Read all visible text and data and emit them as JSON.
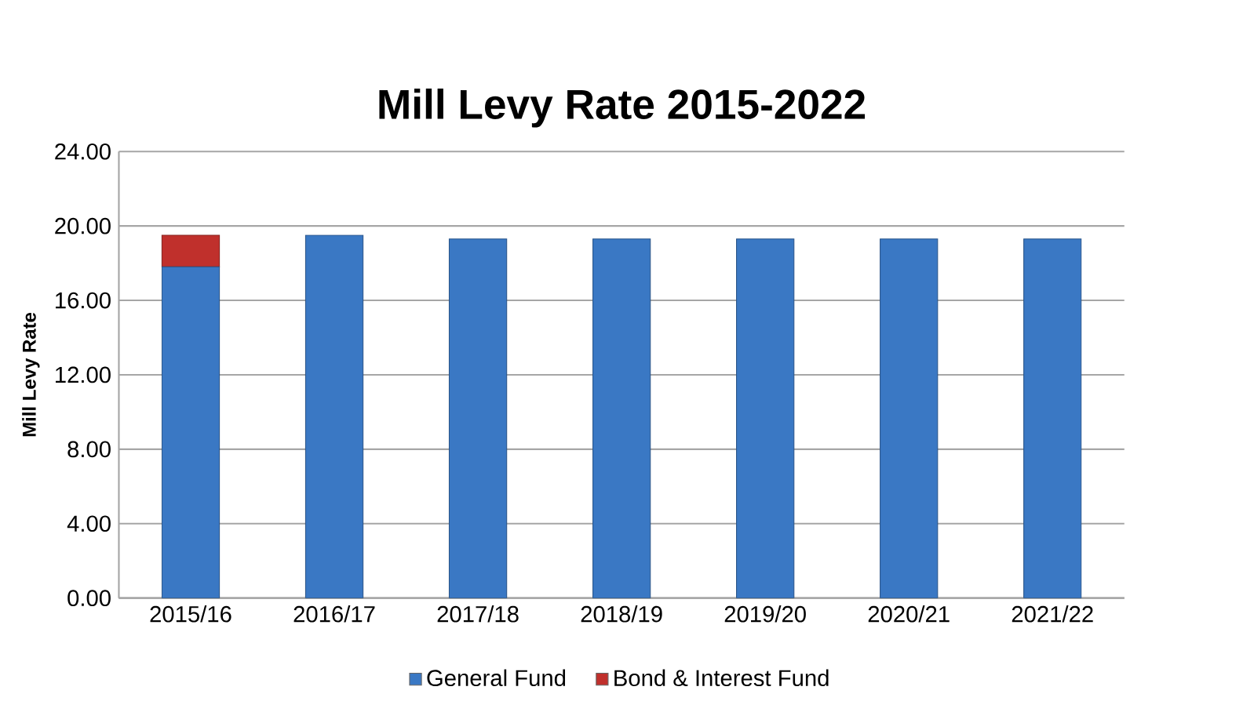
{
  "chart_data": {
    "type": "bar",
    "stacked": true,
    "title": "Mill Levy Rate 2015-2022",
    "ylabel": "Mill Levy Rate",
    "categories": [
      "2015/16",
      "2016/17",
      "2017/18",
      "2018/19",
      "2019/20",
      "2020/21",
      "2021/22"
    ],
    "series": [
      {
        "name": "General Fund",
        "color": "#3a78c4",
        "values": [
          17.8,
          19.5,
          19.3,
          19.3,
          19.3,
          19.3,
          19.3
        ]
      },
      {
        "name": "Bond & Interest Fund",
        "color": "#c0302c",
        "values": [
          1.7,
          0,
          0,
          0,
          0,
          0,
          0
        ]
      }
    ],
    "ylim": [
      0,
      24
    ],
    "yticks": [
      {
        "value": 0,
        "label": "0.00"
      },
      {
        "value": 4,
        "label": "4.00"
      },
      {
        "value": 8,
        "label": "8.00"
      },
      {
        "value": 12,
        "label": "12.00"
      },
      {
        "value": 16,
        "label": "16.00"
      },
      {
        "value": 20,
        "label": "20.00"
      },
      {
        "value": 24,
        "label": "24.00"
      }
    ],
    "grid": "y",
    "legend": "bottom"
  }
}
